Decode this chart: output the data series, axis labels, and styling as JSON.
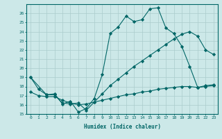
{
  "xlabel": "Humidex (Indice chaleur)",
  "bg_color": "#cce8e8",
  "line_color": "#006666",
  "grid_color": "#aacccc",
  "xlim": [
    -0.5,
    23.5
  ],
  "ylim": [
    15,
    27
  ],
  "yticks": [
    15,
    16,
    17,
    18,
    19,
    20,
    21,
    22,
    23,
    24,
    25,
    26
  ],
  "xticks": [
    0,
    1,
    2,
    3,
    4,
    5,
    6,
    7,
    8,
    9,
    10,
    11,
    12,
    13,
    14,
    15,
    16,
    17,
    18,
    19,
    20,
    21,
    22,
    23
  ],
  "line1_x": [
    0,
    1,
    2,
    3,
    4,
    5,
    6,
    7,
    8,
    9,
    10,
    11,
    12,
    13,
    14,
    15,
    16,
    17,
    18,
    19,
    20,
    21,
    22,
    23
  ],
  "line1_y": [
    19.0,
    17.7,
    17.1,
    17.2,
    16.1,
    16.4,
    15.2,
    15.6,
    16.7,
    19.3,
    23.8,
    24.5,
    25.7,
    25.1,
    25.3,
    26.5,
    26.6,
    24.4,
    23.8,
    22.4,
    20.2,
    17.9,
    18.1,
    18.2
  ],
  "line2_x": [
    0,
    2,
    3,
    4,
    5,
    6,
    7,
    8,
    9,
    10,
    11,
    12,
    13,
    14,
    15,
    16,
    17,
    18,
    19,
    20,
    21,
    22,
    23
  ],
  "line2_y": [
    19.0,
    17.1,
    17.1,
    16.2,
    16.1,
    16.2,
    15.4,
    16.3,
    17.2,
    18.1,
    18.8,
    19.5,
    20.2,
    20.8,
    21.4,
    22.0,
    22.6,
    23.2,
    23.7,
    24.0,
    23.5,
    22.0,
    21.5
  ],
  "line3_x": [
    0,
    1,
    2,
    3,
    4,
    5,
    6,
    7,
    8,
    9,
    10,
    11,
    12,
    13,
    14,
    15,
    16,
    17,
    18,
    19,
    20,
    21,
    22,
    23
  ],
  "line3_y": [
    17.4,
    17.0,
    16.9,
    16.9,
    16.5,
    16.2,
    16.0,
    16.1,
    16.3,
    16.5,
    16.7,
    16.9,
    17.1,
    17.2,
    17.4,
    17.5,
    17.7,
    17.8,
    17.9,
    18.0,
    18.0,
    17.9,
    18.0,
    18.1
  ]
}
